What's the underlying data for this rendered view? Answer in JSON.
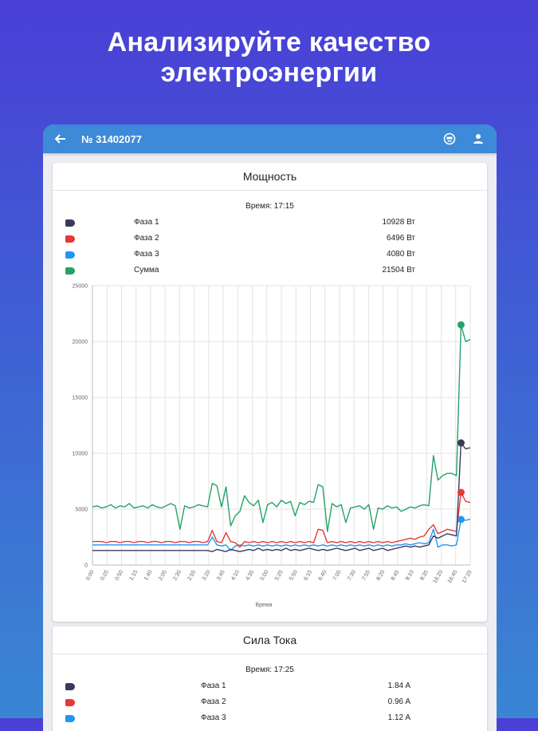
{
  "headline": {
    "line1": "Анализируйте качество",
    "line2": "электроэнергии"
  },
  "appbar": {
    "title": "№ 31402077",
    "back_icon": "arrow-left-icon",
    "meter_icon": "meter-icon",
    "account_icon": "account-icon"
  },
  "colors": {
    "phase1": "#3a3a5c",
    "phase2": "#e53935",
    "phase3": "#2196f3",
    "sum": "#26a269",
    "appbar": "#3d8ad8"
  },
  "power": {
    "title": "Мощность",
    "time": "Время: 17:15",
    "legend": [
      {
        "name": "Фаза 1",
        "value": "10928 Вт"
      },
      {
        "name": "Фаза 2",
        "value": "6496 Вт"
      },
      {
        "name": "Фаза 3",
        "value": "4080 Вт"
      },
      {
        "name": "Сумма",
        "value": "21504 Вт"
      }
    ]
  },
  "chart_data": {
    "type": "line",
    "title": "Мощность",
    "xlabel": "Время",
    "ylabel": "",
    "ylim": [
      0,
      25000
    ],
    "y_ticks": [
      0,
      5000,
      10000,
      15000,
      20000,
      25000
    ],
    "x_tick_labels": [
      "0:00",
      "0:25",
      "0:50",
      "1:15",
      "1:40",
      "2:05",
      "2:30",
      "2:55",
      "3:20",
      "3:45",
      "4:10",
      "4:35",
      "5:00",
      "5:25",
      "5:50",
      "6:15",
      "6:40",
      "7:05",
      "7:30",
      "7:55",
      "8:20",
      "8:45",
      "9:10",
      "9:35",
      "16:20",
      "16:45",
      "17:25"
    ],
    "series": [
      {
        "name": "Фаза 1",
        "last_value": 10928,
        "values": [
          1300,
          1300,
          1300,
          1300,
          1300,
          1300,
          1300,
          1300,
          1300,
          1300,
          1300,
          1300,
          1300,
          1300,
          1300,
          1300,
          1300,
          1300,
          1300,
          1300,
          1300,
          1300,
          1300,
          1300,
          1300,
          1300,
          1200,
          1400,
          1300,
          1200,
          1400,
          1300,
          1200,
          1300,
          1400,
          1300,
          1500,
          1300,
          1400,
          1300,
          1400,
          1300,
          1500,
          1300,
          1400,
          1300,
          1400,
          1500,
          1400,
          1300,
          1400,
          1300,
          1400,
          1500,
          1400,
          1300,
          1400,
          1500,
          1300,
          1400,
          1500,
          1300,
          1400,
          1500,
          1300,
          1400,
          1500,
          1600,
          1700,
          1600,
          1700,
          1600,
          1700,
          1800,
          2600,
          2400,
          2600,
          2800,
          2700,
          2600,
          10928,
          10400,
          10500
        ]
      },
      {
        "name": "Фаза 2",
        "last_value": 6496,
        "values": [
          2100,
          2100,
          2100,
          2000,
          2100,
          2100,
          2000,
          2100,
          2100,
          2000,
          2100,
          2100,
          2000,
          2100,
          2100,
          2000,
          2100,
          2100,
          2000,
          2100,
          2100,
          2000,
          2100,
          2100,
          2000,
          2100,
          3100,
          2100,
          2000,
          2900,
          2100,
          2000,
          1600,
          2100,
          2000,
          2100,
          2000,
          2100,
          2000,
          2100,
          2000,
          2100,
          2000,
          2100,
          2000,
          2100,
          2000,
          2100,
          2000,
          3200,
          3100,
          2000,
          2100,
          2000,
          2100,
          2000,
          2100,
          2000,
          2100,
          2000,
          2100,
          2000,
          2100,
          2000,
          2100,
          2000,
          2100,
          2200,
          2300,
          2400,
          2300,
          2500,
          2600,
          3200,
          3600,
          2800,
          3000,
          3200,
          3100,
          3000,
          6496,
          5700,
          5600
        ]
      },
      {
        "name": "Фаза 3",
        "last_value": 4080,
        "values": [
          1800,
          1800,
          1800,
          1800,
          1800,
          1800,
          1800,
          1800,
          1800,
          1800,
          1800,
          1800,
          1800,
          1800,
          1800,
          1800,
          1800,
          1800,
          1800,
          1800,
          1800,
          1800,
          1800,
          1800,
          1800,
          1800,
          2500,
          1800,
          1700,
          1800,
          1300,
          1700,
          1800,
          1700,
          1800,
          1700,
          1800,
          1700,
          1800,
          1700,
          1800,
          1700,
          1800,
          1700,
          1800,
          1700,
          1800,
          1700,
          1800,
          1700,
          1800,
          1700,
          1800,
          1700,
          1800,
          1700,
          1800,
          1700,
          1800,
          1700,
          1800,
          1700,
          1800,
          1700,
          1800,
          1700,
          1800,
          1800,
          1900,
          1800,
          1900,
          2000,
          1900,
          2000,
          3200,
          1600,
          1800,
          1800,
          1700,
          1800,
          4080,
          4000,
          4100
        ]
      },
      {
        "name": "Сумма",
        "last_value": 21504,
        "values": [
          5200,
          5300,
          5100,
          5200,
          5400,
          5100,
          5300,
          5200,
          5500,
          5100,
          5200,
          5300,
          5100,
          5400,
          5200,
          5100,
          5300,
          5500,
          5300,
          3200,
          5300,
          5100,
          5200,
          5400,
          5300,
          5200,
          7300,
          7100,
          5200,
          7000,
          3500,
          4400,
          4800,
          6200,
          5600,
          5300,
          5800,
          3800,
          5400,
          5600,
          5200,
          5800,
          5500,
          5700,
          4400,
          5600,
          5400,
          5700,
          5600,
          7200,
          7000,
          3000,
          5500,
          5200,
          5400,
          3800,
          5100,
          5200,
          5300,
          5000,
          5400,
          3200,
          5100,
          5000,
          5300,
          5100,
          5200,
          4800,
          5000,
          5200,
          5100,
          5300,
          5400,
          5300,
          9800,
          7600,
          8000,
          8200,
          8200,
          8000,
          21504,
          20000,
          20200
        ]
      }
    ]
  },
  "current": {
    "title": "Сила Тока",
    "time": "Время: 17:25",
    "legend": [
      {
        "name": "Фаза 1",
        "value": "1.84 A"
      },
      {
        "name": "Фаза 2",
        "value": "0.96 A"
      },
      {
        "name": "Фаза 3",
        "value": "1.12 A"
      }
    ]
  }
}
